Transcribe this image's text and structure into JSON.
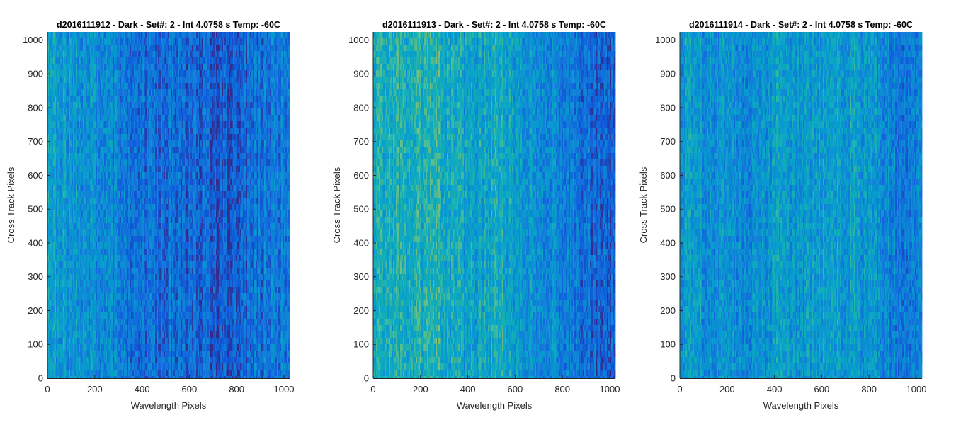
{
  "chart_data": [
    {
      "type": "heatmap",
      "title": "d2016111912 - Dark - Set#: 2 - Int 4.0758 s Temp: -60C",
      "xlabel": "Wavelength Pixels",
      "ylabel": "Cross Track Pixels",
      "xlim": [
        0,
        1024
      ],
      "ylim": [
        0,
        1024
      ],
      "xticks": [
        0,
        200,
        400,
        600,
        800,
        1000
      ],
      "yticks": [
        0,
        100,
        200,
        300,
        400,
        500,
        600,
        700,
        800,
        900,
        1000
      ],
      "colormap": "parula",
      "columns": [
        0,
        64,
        128,
        192,
        256,
        320,
        384,
        448,
        512,
        576,
        640,
        704,
        768,
        832,
        896,
        960,
        1024
      ],
      "column_intensity": [
        0.5,
        0.46,
        0.42,
        0.38,
        0.33,
        0.28,
        0.26,
        0.24,
        0.24,
        0.22,
        0.2,
        0.16,
        0.15,
        0.2,
        0.26,
        0.3,
        0.33
      ]
    },
    {
      "type": "heatmap",
      "title": "d2016111913 - Dark - Set#: 2 - Int 4.0758 s Temp: -60C",
      "xlabel": "Wavelength Pixels",
      "ylabel": "Cross Track Pixels",
      "xlim": [
        0,
        1024
      ],
      "ylim": [
        0,
        1024
      ],
      "xticks": [
        0,
        200,
        400,
        600,
        800,
        1000
      ],
      "yticks": [
        0,
        100,
        200,
        300,
        400,
        500,
        600,
        700,
        800,
        900,
        1000
      ],
      "colormap": "parula",
      "columns": [
        0,
        64,
        128,
        192,
        256,
        320,
        384,
        448,
        512,
        576,
        640,
        704,
        768,
        832,
        896,
        960,
        1024
      ],
      "column_intensity": [
        0.58,
        0.6,
        0.56,
        0.58,
        0.6,
        0.54,
        0.48,
        0.5,
        0.55,
        0.52,
        0.44,
        0.4,
        0.36,
        0.3,
        0.22,
        0.17,
        0.15
      ]
    },
    {
      "type": "heatmap",
      "title": "d2016111914 - Dark - Set#: 2 - Int 4.0758 s Temp: -60C",
      "xlabel": "Wavelength Pixels",
      "ylabel": "Cross Track Pixels",
      "xlim": [
        0,
        1024
      ],
      "ylim": [
        0,
        1024
      ],
      "xticks": [
        0,
        200,
        400,
        600,
        800,
        1000
      ],
      "yticks": [
        0,
        100,
        200,
        300,
        400,
        500,
        600,
        700,
        800,
        900,
        1000
      ],
      "colormap": "parula",
      "columns": [
        0,
        64,
        128,
        192,
        256,
        320,
        384,
        448,
        512,
        576,
        640,
        704,
        768,
        832,
        896,
        960,
        1024
      ],
      "column_intensity": [
        0.46,
        0.44,
        0.4,
        0.38,
        0.36,
        0.4,
        0.44,
        0.42,
        0.44,
        0.46,
        0.5,
        0.46,
        0.44,
        0.4,
        0.34,
        0.3,
        0.32
      ]
    }
  ]
}
